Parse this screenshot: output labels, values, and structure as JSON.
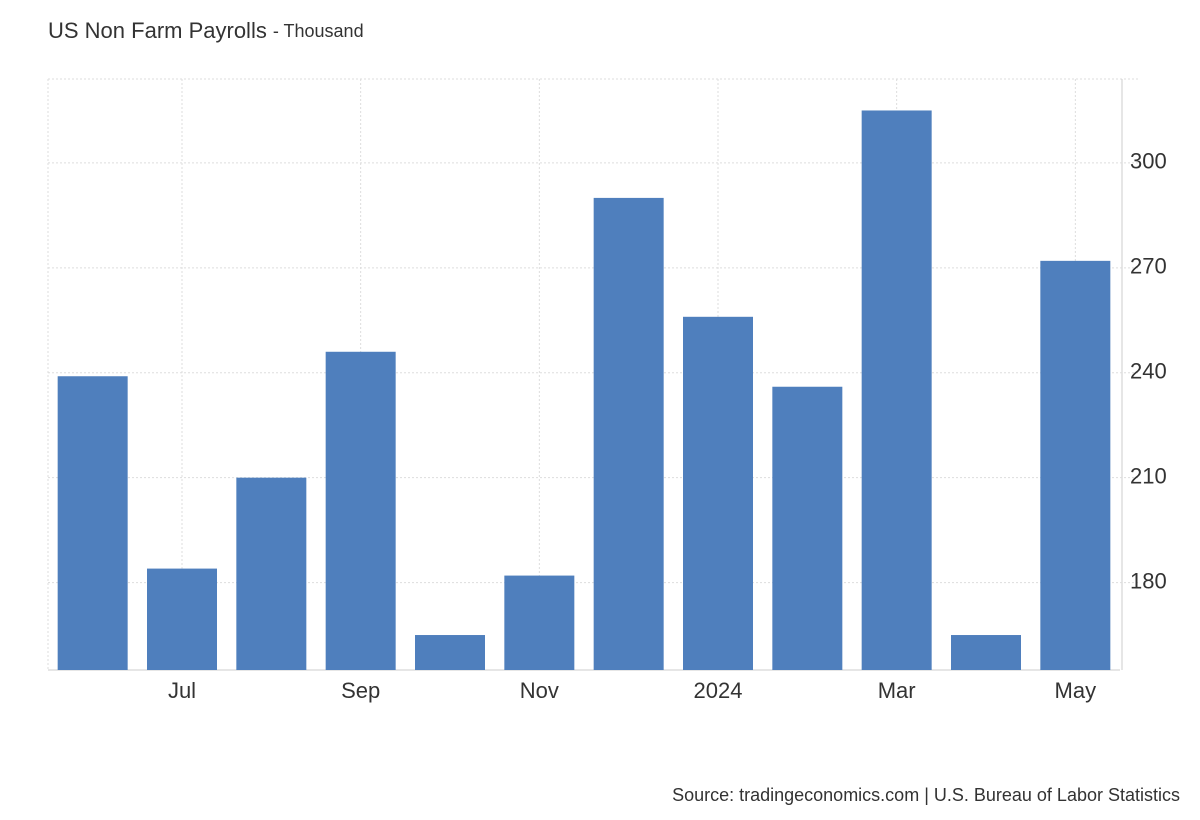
{
  "chart_data": {
    "type": "bar",
    "title": "US Non Farm Payrolls",
    "subtitle": "- Thousand",
    "categories": [
      null,
      "Jul",
      null,
      "Sep",
      null,
      "Nov",
      null,
      "2024",
      null,
      "Mar",
      null,
      "May"
    ],
    "values": [
      239,
      184,
      210,
      246,
      165,
      182,
      290,
      256,
      236,
      315,
      165,
      272
    ],
    "color": "#4f7fbd",
    "ylim": [
      155,
      324
    ],
    "yticks": [
      180,
      210,
      240,
      270,
      300
    ],
    "grid": true,
    "source": "Source: tradingeconomics.com | U.S. Bureau of Labor Statistics"
  }
}
